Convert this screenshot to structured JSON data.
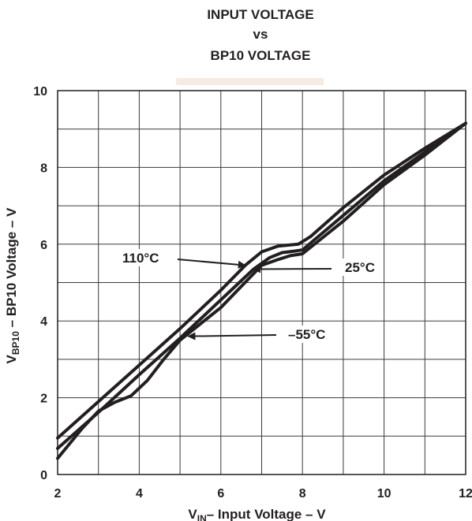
{
  "title": {
    "line1": "INPUT VOLTAGE",
    "line2": "vs",
    "line3": "BP10 VOLTAGE"
  },
  "chart_data": {
    "type": "line",
    "title": "INPUT VOLTAGE vs BP10 VOLTAGE",
    "xlabel_main": "V",
    "xlabel_sub": "IN",
    "xlabel_rest": "– Input Voltage – V",
    "ylabel_main": "V",
    "ylabel_sub": "BP10",
    "ylabel_rest": " – BP10 Voltage – V",
    "xlim": [
      2,
      12
    ],
    "ylim": [
      0,
      10
    ],
    "xticks": [
      "2",
      "4",
      "6",
      "8",
      "10",
      "12"
    ],
    "yticks": [
      "0",
      "2",
      "4",
      "6",
      "8",
      "10"
    ],
    "grid": true,
    "line_color": "#231f20",
    "series": [
      {
        "name": "110°C",
        "x": [
          2,
          3,
          4,
          5,
          6,
          6.6,
          7,
          7.4,
          7.9,
          8.2,
          9,
          10,
          11,
          12
        ],
        "y": [
          0.95,
          1.9,
          2.85,
          3.8,
          4.8,
          5.45,
          5.8,
          5.95,
          6.0,
          6.2,
          6.95,
          7.8,
          8.5,
          9.15
        ]
      },
      {
        "name": "25°C",
        "x": [
          2,
          3,
          4,
          5,
          6,
          6.8,
          7.2,
          7.5,
          7.8,
          8.0,
          9,
          10,
          11,
          12
        ],
        "y": [
          0.68,
          1.62,
          2.6,
          3.55,
          4.55,
          5.35,
          5.65,
          5.78,
          5.82,
          5.85,
          6.75,
          7.65,
          8.4,
          9.15
        ]
      },
      {
        "name": "-55°C",
        "x": [
          2,
          2.6,
          3.0,
          3.4,
          3.8,
          4.2,
          4.6,
          5.0,
          6.0,
          7.0,
          7.4,
          7.7,
          8.0,
          9,
          10,
          11,
          12
        ],
        "y": [
          0.42,
          1.2,
          1.65,
          1.88,
          2.05,
          2.45,
          3.0,
          3.5,
          4.35,
          5.45,
          5.6,
          5.7,
          5.75,
          6.6,
          7.55,
          8.32,
          9.15
        ]
      }
    ],
    "annotations": [
      {
        "text": "110°C",
        "target_x": 6.6,
        "target_y": 5.45,
        "side": "left"
      },
      {
        "text": "25°C",
        "target_x": 6.8,
        "target_y": 5.35,
        "side": "right"
      },
      {
        "text": "–55°C",
        "target_x": 5.2,
        "target_y": 3.6,
        "side": "right"
      }
    ]
  }
}
